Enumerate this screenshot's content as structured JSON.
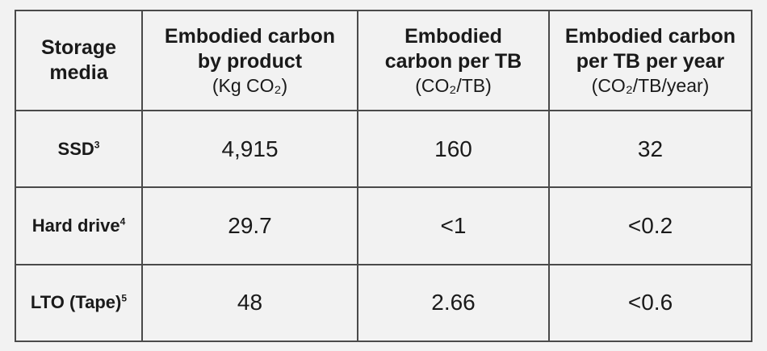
{
  "table": {
    "headers": [
      {
        "lines": [
          "Storage",
          "media"
        ],
        "unit": ""
      },
      {
        "lines": [
          "Embodied carbon",
          "by product"
        ],
        "unit": "(Kg CO₂)"
      },
      {
        "lines": [
          "Embodied",
          "carbon per TB"
        ],
        "unit": "(CO₂/TB)"
      },
      {
        "lines": [
          "Embodied carbon",
          "per TB per year"
        ],
        "unit": "(CO₂/TB/year)"
      }
    ],
    "rows": [
      {
        "label": "SSD",
        "note": "3",
        "values": [
          "4,915",
          "160",
          "32"
        ]
      },
      {
        "label": "Hard drive",
        "note": "4",
        "values": [
          "29.7",
          "<1",
          "<0.2"
        ]
      },
      {
        "label": "LTO (Tape)",
        "note": "5",
        "values": [
          "48",
          "2.66",
          "<0.6"
        ]
      }
    ]
  }
}
